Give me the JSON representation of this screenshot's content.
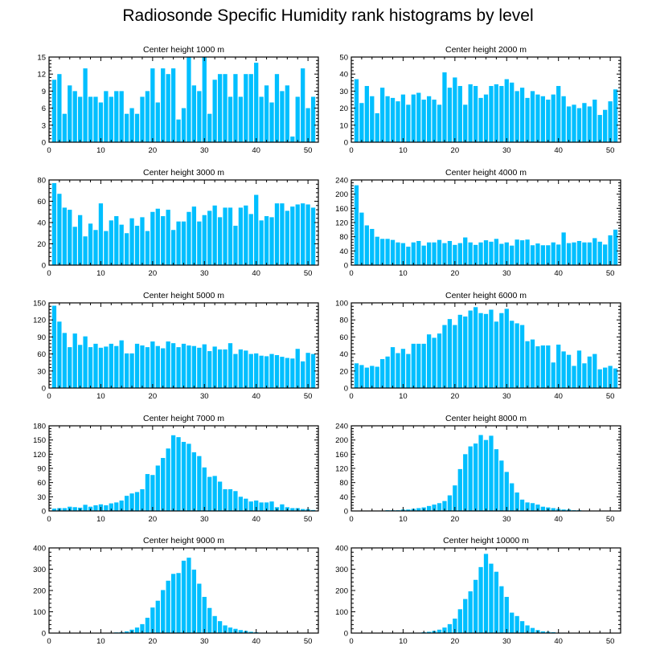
{
  "title": "Radiosonde Specific Humidity rank histograms by level",
  "bar_color": "#00bfff",
  "chart_data": [
    {
      "type": "bar",
      "title": "Center height 1000 m",
      "xlabel": "",
      "ylabel": "",
      "xlim": [
        0,
        52
      ],
      "ylim": [
        0,
        15
      ],
      "xticks": [
        0,
        10,
        20,
        30,
        40,
        50
      ],
      "yticks": [
        0,
        3,
        6,
        9,
        12,
        15
      ],
      "x": [
        1,
        2,
        3,
        4,
        5,
        6,
        7,
        8,
        9,
        10,
        11,
        12,
        13,
        14,
        15,
        16,
        17,
        18,
        19,
        20,
        21,
        22,
        23,
        24,
        25,
        26,
        27,
        28,
        29,
        30,
        31,
        32,
        33,
        34,
        35,
        36,
        37,
        38,
        39,
        40,
        41,
        42,
        43,
        44,
        45,
        46,
        47,
        48,
        49,
        50,
        51
      ],
      "values": [
        11,
        12,
        5,
        10,
        9,
        8,
        13,
        8,
        8,
        7,
        9,
        8,
        9,
        9,
        5,
        6,
        5,
        8,
        9,
        13,
        7,
        13,
        12,
        13,
        4,
        6,
        15,
        10,
        9,
        15,
        5,
        11,
        12,
        12,
        8,
        12,
        8,
        12,
        12,
        14,
        8,
        10,
        7,
        12,
        9,
        10,
        1,
        8,
        13,
        6,
        8
      ]
    },
    {
      "type": "bar",
      "title": "Center height 2000 m",
      "xlabel": "",
      "ylabel": "",
      "xlim": [
        0,
        52
      ],
      "ylim": [
        0,
        50
      ],
      "xticks": [
        0,
        10,
        20,
        30,
        40,
        50
      ],
      "yticks": [
        0,
        10,
        20,
        30,
        40,
        50
      ],
      "x": [
        1,
        2,
        3,
        4,
        5,
        6,
        7,
        8,
        9,
        10,
        11,
        12,
        13,
        14,
        15,
        16,
        17,
        18,
        19,
        20,
        21,
        22,
        23,
        24,
        25,
        26,
        27,
        28,
        29,
        30,
        31,
        32,
        33,
        34,
        35,
        36,
        37,
        38,
        39,
        40,
        41,
        42,
        43,
        44,
        45,
        46,
        47,
        48,
        49,
        50,
        51
      ],
      "values": [
        37,
        23,
        33,
        27,
        17,
        32,
        27,
        26,
        24,
        28,
        22,
        28,
        29,
        25,
        27,
        25,
        22,
        41,
        32,
        38,
        33,
        22,
        34,
        33,
        26,
        28,
        33,
        34,
        33,
        37,
        35,
        30,
        32,
        26,
        30,
        28,
        27,
        25,
        28,
        33,
        27,
        21,
        22,
        20,
        23,
        21,
        25,
        16,
        19,
        24,
        31
      ]
    },
    {
      "type": "bar",
      "title": "Center height 3000 m",
      "xlabel": "",
      "ylabel": "",
      "xlim": [
        0,
        52
      ],
      "ylim": [
        0,
        80
      ],
      "xticks": [
        0,
        10,
        20,
        30,
        40,
        50
      ],
      "yticks": [
        0,
        20,
        40,
        60,
        80
      ],
      "x": [
        1,
        2,
        3,
        4,
        5,
        6,
        7,
        8,
        9,
        10,
        11,
        12,
        13,
        14,
        15,
        16,
        17,
        18,
        19,
        20,
        21,
        22,
        23,
        24,
        25,
        26,
        27,
        28,
        29,
        30,
        31,
        32,
        33,
        34,
        35,
        36,
        37,
        38,
        39,
        40,
        41,
        42,
        43,
        44,
        45,
        46,
        47,
        48,
        49,
        50,
        51
      ],
      "values": [
        77,
        67,
        54,
        52,
        36,
        47,
        27,
        39,
        33,
        58,
        32,
        42,
        46,
        38,
        30,
        44,
        37,
        45,
        32,
        50,
        53,
        46,
        52,
        33,
        41,
        41,
        50,
        55,
        41,
        47,
        51,
        56,
        45,
        54,
        54,
        37,
        54,
        56,
        48,
        66,
        42,
        46,
        45,
        58,
        58,
        51,
        55,
        57,
        58,
        57,
        54
      ]
    },
    {
      "type": "bar",
      "title": "Center height 4000 m",
      "xlabel": "",
      "ylabel": "",
      "xlim": [
        0,
        52
      ],
      "ylim": [
        0,
        240
      ],
      "xticks": [
        0,
        10,
        20,
        30,
        40,
        50
      ],
      "yticks": [
        0,
        40,
        80,
        120,
        160,
        200,
        240
      ],
      "x": [
        1,
        2,
        3,
        4,
        5,
        6,
        7,
        8,
        9,
        10,
        11,
        12,
        13,
        14,
        15,
        16,
        17,
        18,
        19,
        20,
        21,
        22,
        23,
        24,
        25,
        26,
        27,
        28,
        29,
        30,
        31,
        32,
        33,
        34,
        35,
        36,
        37,
        38,
        39,
        40,
        41,
        42,
        43,
        44,
        45,
        46,
        47,
        48,
        49,
        50,
        51
      ],
      "values": [
        225,
        148,
        112,
        102,
        80,
        74,
        74,
        71,
        64,
        62,
        52,
        64,
        68,
        55,
        64,
        64,
        71,
        62,
        68,
        57,
        62,
        78,
        64,
        57,
        64,
        70,
        66,
        74,
        60,
        64,
        55,
        72,
        70,
        72,
        56,
        61,
        56,
        56,
        64,
        58,
        92,
        62,
        64,
        68,
        64,
        64,
        76,
        66,
        58,
        84,
        100
      ]
    },
    {
      "type": "bar",
      "title": "Center height 5000 m",
      "xlabel": "",
      "ylabel": "",
      "xlim": [
        0,
        52
      ],
      "ylim": [
        0,
        150
      ],
      "xticks": [
        0,
        10,
        20,
        30,
        40,
        50
      ],
      "yticks": [
        0,
        30,
        60,
        90,
        120,
        150
      ],
      "x": [
        1,
        2,
        3,
        4,
        5,
        6,
        7,
        8,
        9,
        10,
        11,
        12,
        13,
        14,
        15,
        16,
        17,
        18,
        19,
        20,
        21,
        22,
        23,
        24,
        25,
        26,
        27,
        28,
        29,
        30,
        31,
        32,
        33,
        34,
        35,
        36,
        37,
        38,
        39,
        40,
        41,
        42,
        43,
        44,
        45,
        46,
        47,
        48,
        49,
        50,
        51
      ],
      "values": [
        145,
        117,
        97,
        72,
        96,
        76,
        91,
        72,
        78,
        71,
        73,
        78,
        74,
        84,
        61,
        61,
        78,
        75,
        72,
        82,
        74,
        70,
        82,
        79,
        72,
        78,
        75,
        74,
        71,
        77,
        65,
        73,
        68,
        68,
        79,
        60,
        68,
        66,
        60,
        61,
        57,
        56,
        60,
        58,
        55,
        53,
        52,
        69,
        47,
        62,
        60
      ]
    },
    {
      "type": "bar",
      "title": "Center height 6000 m",
      "xlabel": "",
      "ylabel": "",
      "xlim": [
        0,
        52
      ],
      "ylim": [
        0,
        100
      ],
      "xticks": [
        0,
        10,
        20,
        30,
        40,
        50
      ],
      "yticks": [
        0,
        20,
        40,
        60,
        80,
        100
      ],
      "x": [
        1,
        2,
        3,
        4,
        5,
        6,
        7,
        8,
        9,
        10,
        11,
        12,
        13,
        14,
        15,
        16,
        17,
        18,
        19,
        20,
        21,
        22,
        23,
        24,
        25,
        26,
        27,
        28,
        29,
        30,
        31,
        32,
        33,
        34,
        35,
        36,
        37,
        38,
        39,
        40,
        41,
        42,
        43,
        44,
        45,
        46,
        47,
        48,
        49,
        50,
        51
      ],
      "values": [
        29,
        27,
        24,
        26,
        25,
        34,
        37,
        48,
        41,
        46,
        40,
        52,
        52,
        52,
        63,
        59,
        64,
        74,
        81,
        74,
        86,
        84,
        91,
        95,
        88,
        87,
        92,
        78,
        88,
        93,
        79,
        76,
        74,
        55,
        57,
        49,
        50,
        50,
        30,
        51,
        43,
        39,
        26,
        44,
        29,
        37,
        40,
        22,
        24,
        26,
        23
      ]
    },
    {
      "type": "bar",
      "title": "Center height 7000 m",
      "xlabel": "",
      "ylabel": "",
      "xlim": [
        0,
        52
      ],
      "ylim": [
        0,
        180
      ],
      "xticks": [
        0,
        10,
        20,
        30,
        40,
        50
      ],
      "yticks": [
        0,
        30,
        60,
        90,
        120,
        150,
        180
      ],
      "x": [
        1,
        2,
        3,
        4,
        5,
        6,
        7,
        8,
        9,
        10,
        11,
        12,
        13,
        14,
        15,
        16,
        17,
        18,
        19,
        20,
        21,
        22,
        23,
        24,
        25,
        26,
        27,
        28,
        29,
        30,
        31,
        32,
        33,
        34,
        35,
        36,
        37,
        38,
        39,
        40,
        41,
        42,
        43,
        44,
        45,
        46,
        47,
        48,
        49,
        50,
        51
      ],
      "values": [
        5,
        6,
        6,
        9,
        8,
        7,
        13,
        9,
        12,
        14,
        12,
        16,
        18,
        22,
        32,
        37,
        40,
        46,
        78,
        76,
        96,
        112,
        132,
        160,
        156,
        146,
        142,
        124,
        116,
        92,
        72,
        74,
        62,
        46,
        46,
        42,
        30,
        26,
        20,
        22,
        18,
        18,
        20,
        8,
        14,
        8,
        6,
        6,
        4,
        4,
        2
      ]
    },
    {
      "type": "bar",
      "title": "Center height 8000 m",
      "xlabel": "",
      "ylabel": "",
      "xlim": [
        0,
        52
      ],
      "ylim": [
        0,
        240
      ],
      "xticks": [
        0,
        10,
        20,
        30,
        40,
        50
      ],
      "yticks": [
        0,
        40,
        80,
        120,
        160,
        200,
        240
      ],
      "x": [
        1,
        2,
        3,
        4,
        5,
        6,
        7,
        8,
        9,
        10,
        11,
        12,
        13,
        14,
        15,
        16,
        17,
        18,
        19,
        20,
        21,
        22,
        23,
        24,
        25,
        26,
        27,
        28,
        29,
        30,
        31,
        32,
        33,
        34,
        35,
        36,
        37,
        38,
        39,
        40,
        41,
        42,
        43,
        44,
        45,
        46,
        47,
        48,
        49,
        50,
        51
      ],
      "values": [
        1,
        1,
        1,
        1,
        1,
        1,
        2,
        2,
        2,
        4,
        4,
        6,
        8,
        10,
        14,
        18,
        22,
        28,
        44,
        72,
        118,
        160,
        182,
        190,
        214,
        200,
        212,
        174,
        142,
        110,
        78,
        52,
        32,
        24,
        22,
        18,
        12,
        10,
        8,
        6,
        4,
        4,
        2,
        2,
        1,
        1,
        1,
        1,
        1,
        1,
        1
      ]
    },
    {
      "type": "bar",
      "title": "Center height 9000 m",
      "xlabel": "",
      "ylabel": "",
      "xlim": [
        0,
        52
      ],
      "ylim": [
        0,
        400
      ],
      "xticks": [
        0,
        10,
        20,
        30,
        40,
        50
      ],
      "yticks": [
        0,
        100,
        200,
        300,
        400
      ],
      "x": [
        1,
        2,
        3,
        4,
        5,
        6,
        7,
        8,
        9,
        10,
        11,
        12,
        13,
        14,
        15,
        16,
        17,
        18,
        19,
        20,
        21,
        22,
        23,
        24,
        25,
        26,
        27,
        28,
        29,
        30,
        31,
        32,
        33,
        34,
        35,
        36,
        37,
        38,
        39,
        40,
        41,
        42,
        43,
        44,
        45,
        46,
        47,
        48,
        49,
        50,
        51
      ],
      "values": [
        1,
        1,
        1,
        1,
        1,
        1,
        1,
        1,
        1,
        1,
        1,
        2,
        3,
        4,
        8,
        16,
        26,
        42,
        72,
        120,
        152,
        202,
        246,
        278,
        282,
        340,
        354,
        298,
        232,
        170,
        118,
        80,
        56,
        36,
        26,
        20,
        14,
        10,
        6,
        4,
        2,
        2,
        1,
        1,
        1,
        1,
        1,
        1,
        1,
        1,
        1
      ]
    },
    {
      "type": "bar",
      "title": "Center height 10000 m",
      "xlabel": "",
      "ylabel": "",
      "xlim": [
        0,
        52
      ],
      "ylim": [
        0,
        400
      ],
      "xticks": [
        0,
        10,
        20,
        30,
        40,
        50
      ],
      "yticks": [
        0,
        100,
        200,
        300,
        400
      ],
      "x": [
        1,
        2,
        3,
        4,
        5,
        6,
        7,
        8,
        9,
        10,
        11,
        12,
        13,
        14,
        15,
        16,
        17,
        18,
        19,
        20,
        21,
        22,
        23,
        24,
        25,
        26,
        27,
        28,
        29,
        30,
        31,
        32,
        33,
        34,
        35,
        36,
        37,
        38,
        39,
        40,
        41,
        42,
        43,
        44,
        45,
        46,
        47,
        48,
        49,
        50,
        51
      ],
      "values": [
        1,
        1,
        1,
        1,
        1,
        1,
        1,
        1,
        1,
        1,
        1,
        2,
        2,
        4,
        6,
        10,
        16,
        26,
        42,
        68,
        112,
        160,
        196,
        250,
        310,
        372,
        326,
        288,
        220,
        170,
        96,
        80,
        56,
        36,
        24,
        14,
        8,
        6,
        4,
        2,
        2,
        1,
        1,
        1,
        1,
        1,
        1,
        1,
        1,
        1,
        1
      ]
    }
  ]
}
